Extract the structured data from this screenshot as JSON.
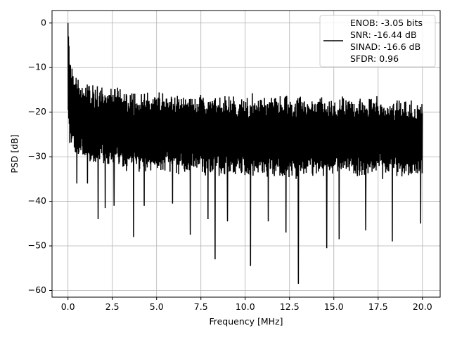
{
  "chart_data": {
    "type": "line",
    "title": "",
    "xlabel": "Frequency [MHz]",
    "ylabel": "PSD [dB]",
    "xlim": [
      -0.9,
      21.0
    ],
    "ylim": [
      -61.5,
      2.8
    ],
    "grid": true,
    "x_ticks": [
      0.0,
      2.5,
      5.0,
      7.5,
      10.0,
      12.5,
      15.0,
      17.5,
      20.0
    ],
    "x_tick_labels": [
      "0.0",
      "2.5",
      "5.0",
      "7.5",
      "10.0",
      "12.5",
      "15.0",
      "17.5",
      "20.0"
    ],
    "y_ticks": [
      0,
      -10,
      -20,
      -30,
      -40,
      -50,
      -60
    ],
    "y_tick_labels": [
      "0",
      "−10",
      "−20",
      "−30",
      "−40",
      "−50",
      "−60"
    ],
    "legend_position": "upper right",
    "legend_lines": [
      "ENOB: -3.05 bits",
      "SNR: -16.44 dB",
      "SINAD: -16.6 dB",
      "SFDR: 0.96"
    ],
    "series": [
      {
        "color": "#000000",
        "x_range": [
          0.0,
          20.0
        ],
        "envelope": [
          {
            "x": 0.0,
            "top": 0.0,
            "bottom": -23.0
          },
          {
            "x": 0.1,
            "top": -6.0,
            "bottom": -28.0
          },
          {
            "x": 0.3,
            "top": -10.0,
            "bottom": -30.0
          },
          {
            "x": 0.5,
            "top": -12.0,
            "bottom": -31.0
          },
          {
            "x": 1.0,
            "top": -13.0,
            "bottom": -32.0
          },
          {
            "x": 2.5,
            "top": -14.0,
            "bottom": -33.0
          },
          {
            "x": 5.0,
            "top": -15.0,
            "bottom": -34.0
          },
          {
            "x": 10.0,
            "top": -16.0,
            "bottom": -35.0
          },
          {
            "x": 15.0,
            "top": -16.0,
            "bottom": -35.0
          },
          {
            "x": 20.0,
            "top": -17.0,
            "bottom": -35.0
          }
        ],
        "dips": [
          {
            "x": 0.5,
            "y": -36.0
          },
          {
            "x": 1.1,
            "y": -36.0
          },
          {
            "x": 1.7,
            "y": -44.0
          },
          {
            "x": 2.1,
            "y": -41.5
          },
          {
            "x": 2.6,
            "y": -41.0
          },
          {
            "x": 3.7,
            "y": -48.0
          },
          {
            "x": 4.3,
            "y": -41.0
          },
          {
            "x": 5.9,
            "y": -40.5
          },
          {
            "x": 6.9,
            "y": -47.5
          },
          {
            "x": 7.9,
            "y": -44.0
          },
          {
            "x": 8.3,
            "y": -53.0
          },
          {
            "x": 9.0,
            "y": -44.5
          },
          {
            "x": 10.3,
            "y": -54.5
          },
          {
            "x": 11.3,
            "y": -44.5
          },
          {
            "x": 12.3,
            "y": -47.0
          },
          {
            "x": 13.0,
            "y": -58.5
          },
          {
            "x": 14.6,
            "y": -50.5
          },
          {
            "x": 15.3,
            "y": -48.5
          },
          {
            "x": 16.8,
            "y": -46.5
          },
          {
            "x": 18.3,
            "y": -49.0
          },
          {
            "x": 19.9,
            "y": -45.0
          }
        ]
      }
    ]
  }
}
